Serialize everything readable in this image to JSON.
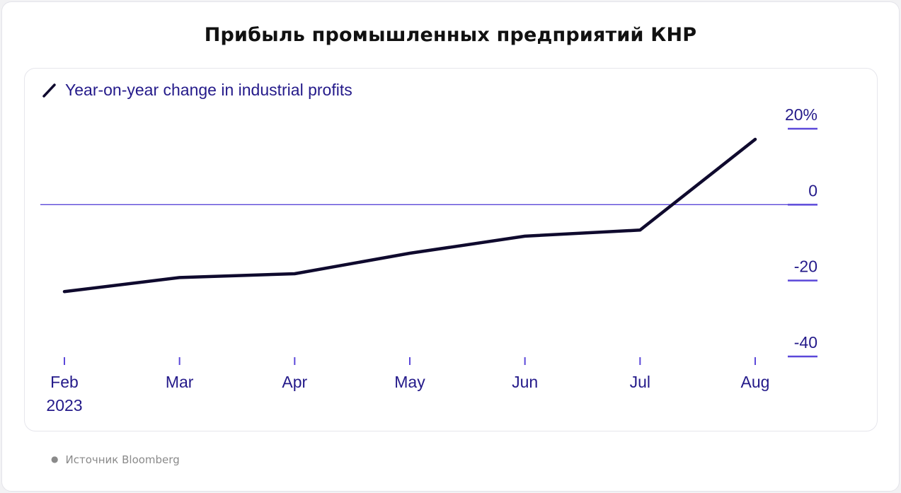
{
  "page": {
    "title": "Прибыль промышленных предприятий КНР",
    "source": "Источник Bloomberg"
  },
  "chart_data": {
    "type": "line",
    "legend": "Year-on-year change in industrial profits",
    "x": [
      "Feb\n2023",
      "Mar",
      "Apr",
      "May",
      "Jun",
      "Jul",
      "Aug"
    ],
    "series": [
      {
        "name": "Year-on-year change in industrial profits",
        "values": [
          -22.9,
          -19.2,
          -18.2,
          -12.8,
          -8.3,
          -6.7,
          17.2
        ]
      }
    ],
    "yticks": [
      20,
      0,
      -20,
      -40
    ],
    "ytick_labels": [
      "20%",
      "0",
      "-20",
      "-40"
    ],
    "ylim": [
      -40,
      20
    ],
    "zero_line": true,
    "y_axis_position": "right",
    "colors": {
      "line": "#0f0a2e",
      "axis": "#5b48d9",
      "text": "#241a8a"
    }
  }
}
